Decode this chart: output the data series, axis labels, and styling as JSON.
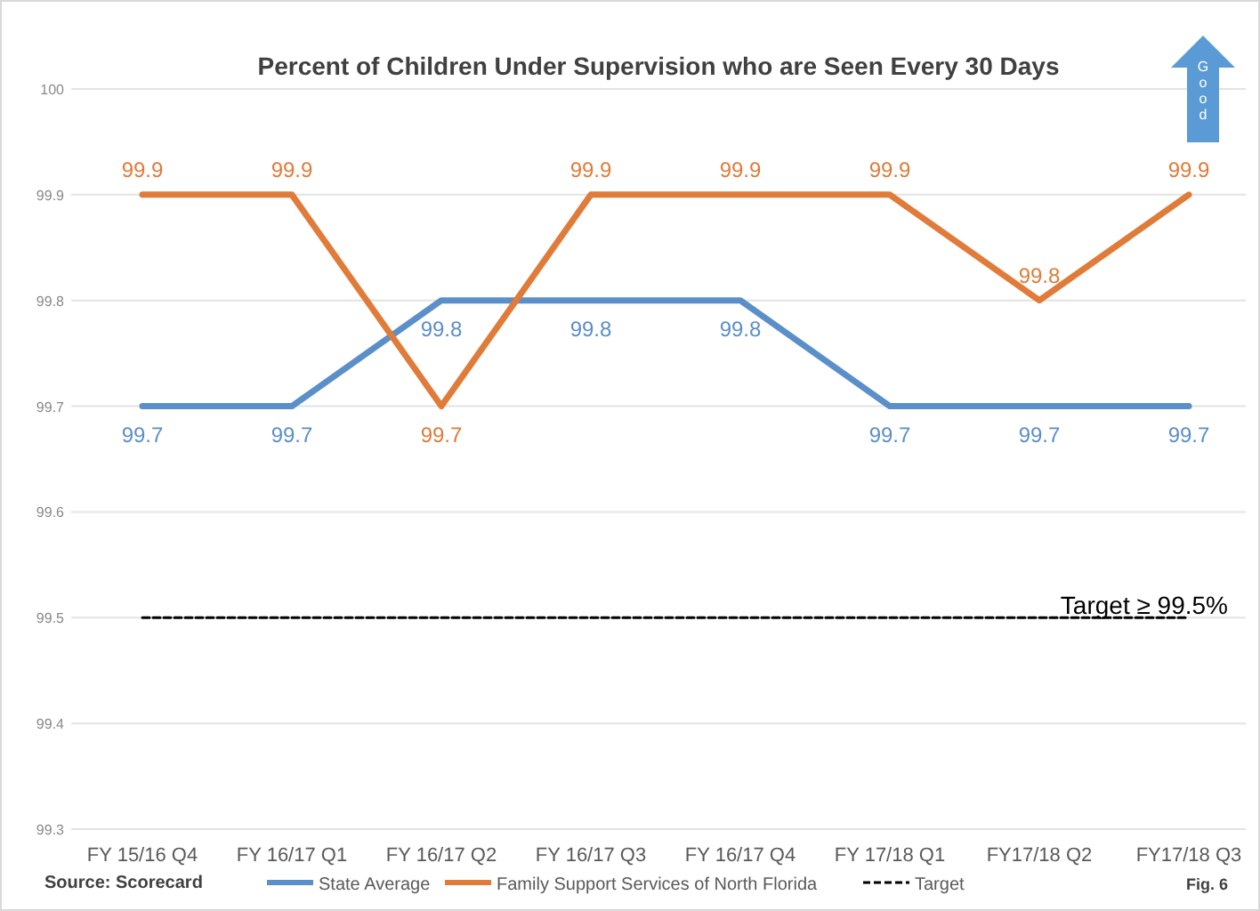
{
  "chart_data": {
    "type": "line",
    "title": "Percent of Children Under Supervision who are Seen Every 30 Days",
    "categories": [
      "FY 15/16 Q4",
      "FY 16/17 Q1",
      "FY 16/17 Q2",
      "FY 16/17 Q3",
      "FY 16/17 Q4",
      "FY 17/18 Q1",
      "FY17/18 Q2",
      "FY17/18 Q3"
    ],
    "series": [
      {
        "name": "State Average",
        "color": "#5b8fc9",
        "values": [
          99.7,
          99.7,
          99.8,
          99.8,
          99.8,
          99.7,
          99.7,
          99.7
        ],
        "value_labels": [
          "99.7",
          "99.7",
          "99.8",
          "99.8",
          "99.8",
          "99.7",
          "99.7",
          "99.7"
        ]
      },
      {
        "name": "Family Support Services of North Florida",
        "color": "#e07b39",
        "values": [
          99.9,
          99.9,
          99.7,
          99.9,
          99.9,
          99.9,
          99.8,
          99.9
        ],
        "value_labels": [
          "99.9",
          "99.9",
          "99.7",
          "99.9",
          "99.9",
          "99.9",
          "99.8",
          "99.9"
        ]
      },
      {
        "name": "Target",
        "color": "#000000",
        "line_style": "dashed",
        "values": [
          99.5,
          99.5,
          99.5,
          99.5,
          99.5,
          99.5,
          99.5,
          99.5
        ]
      }
    ],
    "ylim": [
      99.3,
      100
    ],
    "yticks": [
      99.3,
      99.4,
      99.5,
      99.6,
      99.7,
      99.8,
      99.9,
      100
    ],
    "grid": "y",
    "legend": "bottom",
    "marker": "none",
    "annotations": [
      {
        "text": "Target ≥ 99.5%",
        "x": "FY17/18 Q3",
        "y": 99.5
      },
      "Source: Scorecard",
      "Fig. 6",
      "Good"
    ]
  }
}
